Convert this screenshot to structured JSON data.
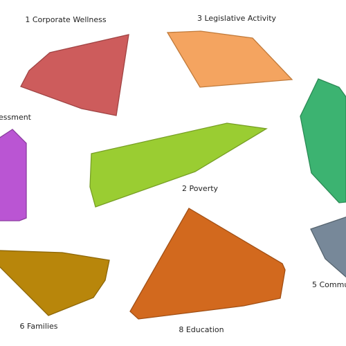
{
  "regions": [
    {
      "label": "1 Corporate Wellness"
    },
    {
      "label": "3 Legislative Activity"
    },
    {
      "label": "essment"
    },
    {
      "label": "2 Poverty"
    },
    {
      "label": "5 Commu"
    },
    {
      "label": "6 Families"
    },
    {
      "label": "8 Education"
    }
  ]
}
